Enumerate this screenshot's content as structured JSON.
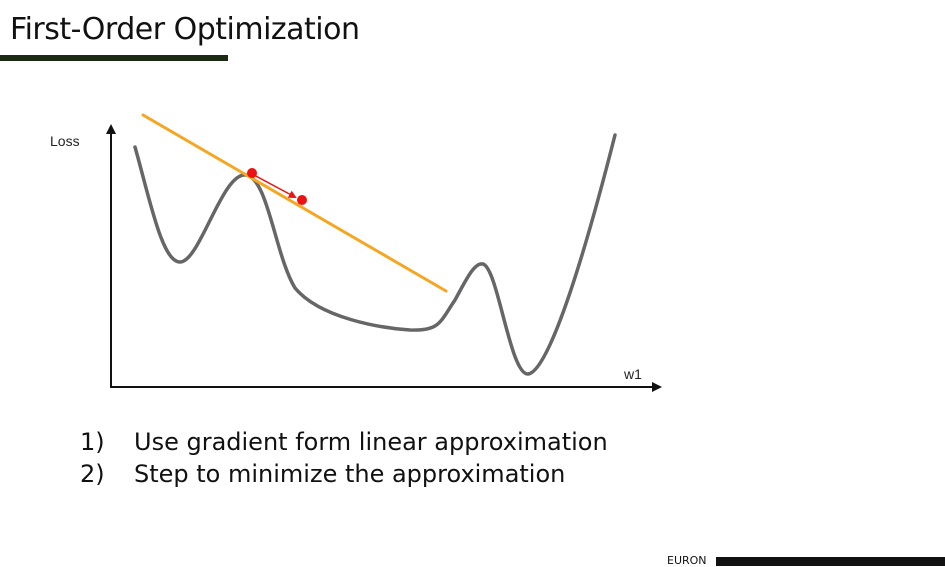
{
  "slide": {
    "title": "First-Order Optimization"
  },
  "diagram": {
    "y_axis_label": "Loss",
    "x_axis_label": "w1",
    "colors": {
      "loss_curve": "#666666",
      "tangent_line": "#f5a623",
      "step_points": "#ee1111",
      "axes": "#111111"
    }
  },
  "steps": [
    {
      "number": "1)",
      "text": "Use gradient form linear approximation"
    },
    {
      "number": "2)",
      "text": "Step to minimize the approximation"
    }
  ],
  "footer": {
    "brand": "EURON"
  },
  "colors": {
    "accent_bar": "#1c2a14"
  }
}
